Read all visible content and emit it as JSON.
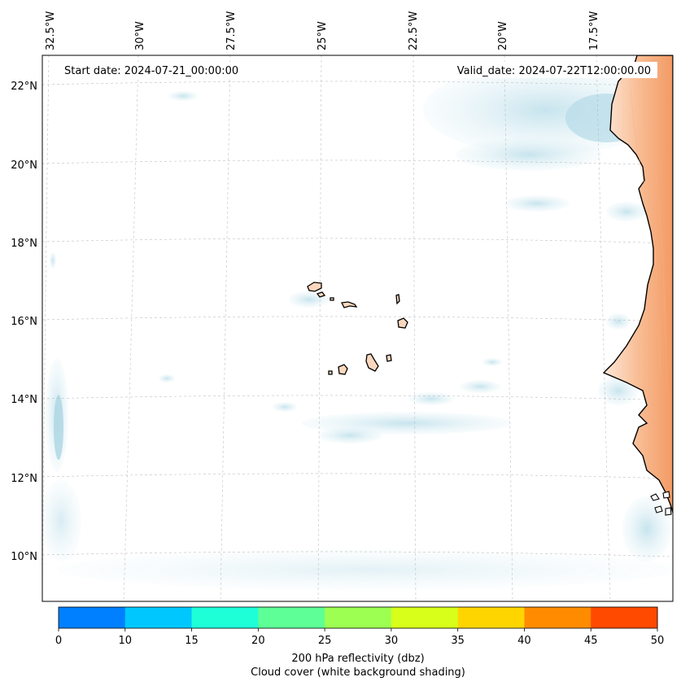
{
  "map": {
    "start_date_text": "Start date: 2024-07-21_00:00:00",
    "valid_date_text": "Valid_date: 2024-07-22T12:00:00.00",
    "lon_ticks": [
      "32.5°W",
      "30°W",
      "27.5°W",
      "25°W",
      "22.5°W",
      "20°W",
      "17.5°W"
    ],
    "lat_ticks": [
      "22°N",
      "20°N",
      "18°N",
      "16°N",
      "14°N",
      "12°N",
      "10°N"
    ],
    "land_color": "#f6a370",
    "cloud_color": "#c6e3ee"
  },
  "colorbar": {
    "ticks": [
      "0",
      "10",
      "15",
      "20",
      "25",
      "30",
      "35",
      "40",
      "45",
      "50"
    ],
    "colors": [
      "#0080ff",
      "#00c8ff",
      "#1effd8",
      "#5eff96",
      "#9dff52",
      "#d8ff1a",
      "#ffd500",
      "#ff8c00",
      "#ff4a00"
    ],
    "label_line1": "200 hPa reflectivity (dbz)",
    "label_line2": "Cloud cover (white background shading)"
  }
}
